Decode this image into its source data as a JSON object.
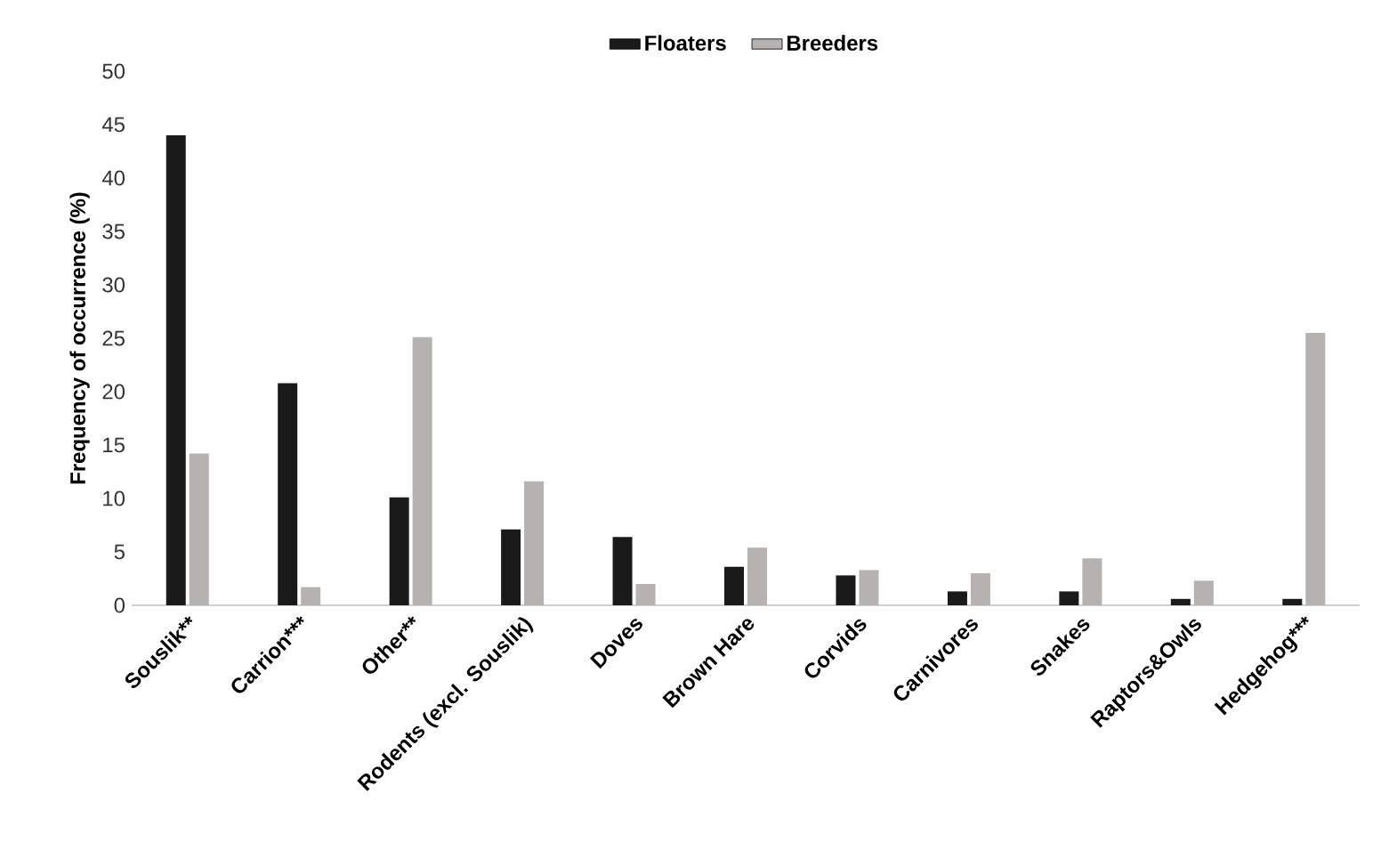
{
  "chart_data": {
    "type": "bar",
    "ylabel": "Frequency of occurrence (%)",
    "categories": [
      "Souslik**",
      "Carrion***",
      "Other**",
      "Rodents (excl. Souslik)",
      "Doves",
      "Brown Hare",
      "Corvids",
      "Carnivores",
      "Snakes",
      "Raptors&Owls",
      "Hedgehog***"
    ],
    "series": [
      {
        "name": "Floaters",
        "color": "#1a1a1a",
        "values": [
          44.0,
          20.8,
          10.1,
          7.1,
          6.4,
          3.6,
          2.8,
          1.3,
          1.3,
          0.6,
          0.6
        ]
      },
      {
        "name": "Breeders",
        "color": "#b5b2b0",
        "values": [
          14.2,
          1.7,
          25.1,
          11.6,
          2.0,
          5.4,
          3.3,
          3.0,
          4.4,
          2.3,
          25.5
        ]
      }
    ],
    "ylim": [
      0,
      50
    ],
    "yticks": [
      0,
      5,
      10,
      15,
      20,
      25,
      30,
      35,
      40,
      45,
      50
    ],
    "legend": "top"
  }
}
